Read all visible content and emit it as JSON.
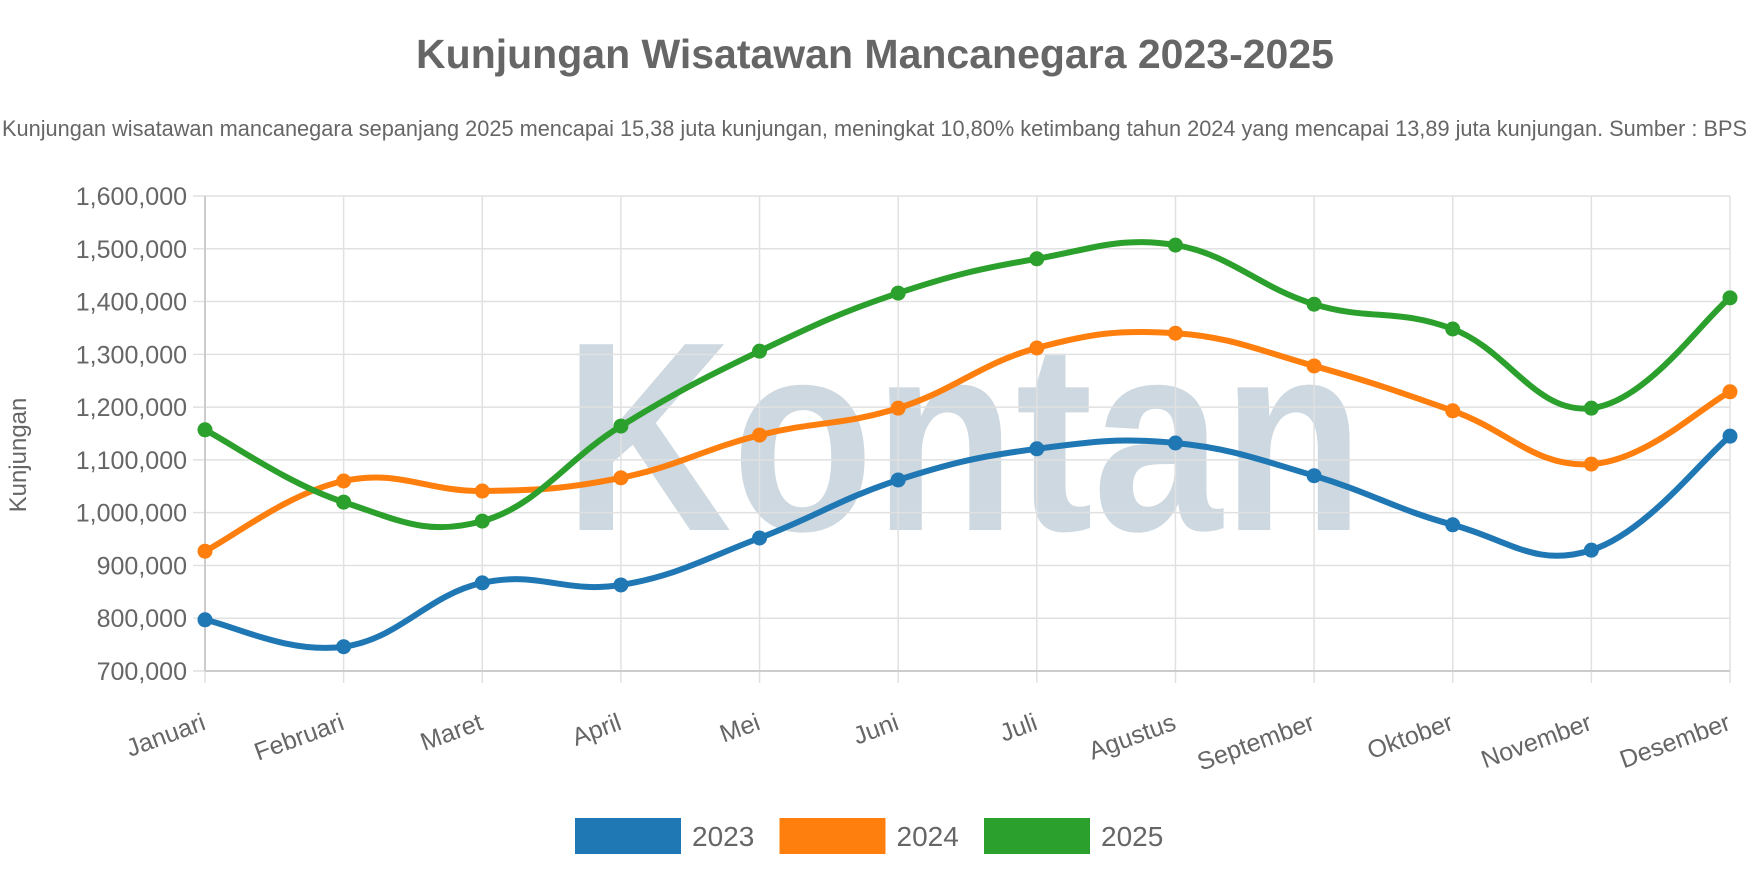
{
  "chart_data": {
    "type": "line",
    "title": "Kunjungan Wisatawan Mancanegara 2023-2025",
    "subtitle": "Kunjungan wisatawan mancanegara sepanjang 2025 mencapai 15,38 juta kunjungan, meningkat 10,80% ketimbang tahun 2024 yang mencapai 13,89 juta kunjungan. Sumber : BPS",
    "xlabel": "",
    "ylabel": "Kunjungan",
    "ylim": [
      700000,
      1600000
    ],
    "yticks": [
      "1,600,000",
      "1,500,000",
      "1,400,000",
      "1,300,000",
      "1,200,000",
      "1,100,000",
      "1,000,000",
      "900,000",
      "800,000",
      "700,000"
    ],
    "grid": true,
    "legend": "bottom",
    "smooth": true,
    "categories": [
      "Januari",
      "Februari",
      "Maret",
      "April",
      "Mei",
      "Juni",
      "Juli",
      "Agustus",
      "September",
      "Oktober",
      "November",
      "Desember"
    ],
    "series": [
      {
        "name": "2023",
        "color": "#1f77b4",
        "values": [
          797000,
          746000,
          867000,
          863000,
          952000,
          1062000,
          1121000,
          1132000,
          1070000,
          977000,
          929000,
          1145000
        ]
      },
      {
        "name": "2024",
        "color": "#ff7f0e",
        "values": [
          927000,
          1060000,
          1041000,
          1066000,
          1147000,
          1198000,
          1312000,
          1340000,
          1278000,
          1193000,
          1092000,
          1229000
        ]
      },
      {
        "name": "2025",
        "color": "#2ca02c",
        "values": [
          1157000,
          1020000,
          984000,
          1164000,
          1306000,
          1416000,
          1481000,
          1507000,
          1395000,
          1348000,
          1198000,
          1407000
        ]
      }
    ]
  },
  "watermark": "Kontan"
}
